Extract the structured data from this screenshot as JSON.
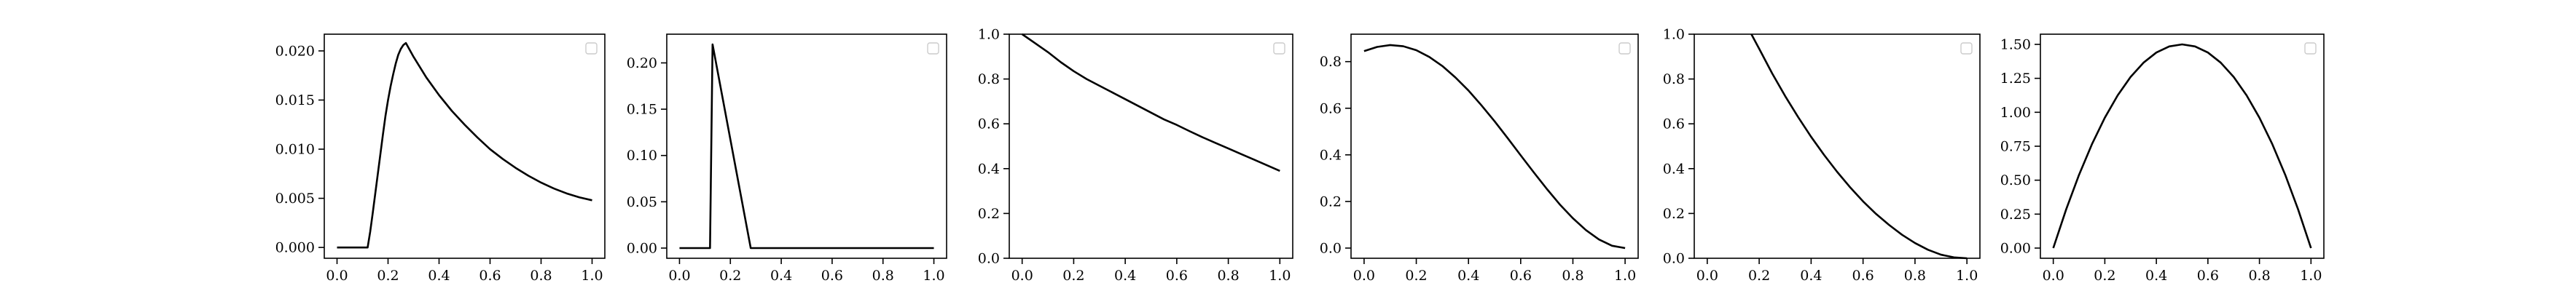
{
  "chart_data": [
    {
      "type": "line",
      "xlim": [
        -0.05,
        1.05
      ],
      "ylim": [
        -0.0011,
        0.0217
      ],
      "xticks": [
        0.0,
        0.2,
        0.4,
        0.6,
        0.8,
        1.0
      ],
      "xtick_labels": [
        "0.0",
        "0.2",
        "0.4",
        "0.6",
        "0.8",
        "1.0"
      ],
      "yticks": [
        0.0,
        0.005,
        0.01,
        0.015,
        0.02
      ],
      "ytick_labels": [
        "0.000",
        "0.005",
        "0.010",
        "0.015",
        "0.020"
      ],
      "legend": "top-right",
      "series": [
        {
          "x": [
            0.0,
            0.12,
            0.13,
            0.14,
            0.15,
            0.16,
            0.17,
            0.18,
            0.19,
            0.2,
            0.21,
            0.22,
            0.23,
            0.24,
            0.25,
            0.26,
            0.27,
            0.3,
            0.35,
            0.4,
            0.45,
            0.5,
            0.55,
            0.6,
            0.65,
            0.7,
            0.75,
            0.8,
            0.85,
            0.9,
            0.95,
            1.0
          ],
          "y": [
            0.0,
            0.0,
            0.0016,
            0.0035,
            0.0055,
            0.0075,
            0.0095,
            0.0115,
            0.0134,
            0.015,
            0.0164,
            0.0176,
            0.0187,
            0.0196,
            0.0202,
            0.0206,
            0.0208,
            0.0194,
            0.0173,
            0.0155,
            0.0139,
            0.0125,
            0.0112,
            0.01,
            0.009,
            0.0081,
            0.0073,
            0.0066,
            0.006,
            0.0055,
            0.0051,
            0.0048
          ]
        }
      ]
    },
    {
      "type": "line",
      "xlim": [
        -0.05,
        1.05
      ],
      "ylim": [
        -0.011,
        0.231
      ],
      "xticks": [
        0.0,
        0.2,
        0.4,
        0.6,
        0.8,
        1.0
      ],
      "xtick_labels": [
        "0.0",
        "0.2",
        "0.4",
        "0.6",
        "0.8",
        "1.0"
      ],
      "yticks": [
        0.0,
        0.05,
        0.1,
        0.15,
        0.2
      ],
      "ytick_labels": [
        "0.00",
        "0.05",
        "0.10",
        "0.15",
        "0.20"
      ],
      "legend": "top-right",
      "series": [
        {
          "x": [
            0.0,
            0.12,
            0.13,
            0.28,
            1.0
          ],
          "y": [
            0.0,
            0.0,
            0.22,
            0.0,
            0.0
          ]
        }
      ]
    },
    {
      "type": "line",
      "xlim": [
        -0.05,
        1.05
      ],
      "ylim": [
        0.0,
        1.0
      ],
      "xticks": [
        0.0,
        0.2,
        0.4,
        0.6,
        0.8,
        1.0
      ],
      "xtick_labels": [
        "0.0",
        "0.2",
        "0.4",
        "0.6",
        "0.8",
        "1.0"
      ],
      "yticks": [
        0.0,
        0.2,
        0.4,
        0.6,
        0.8,
        1.0
      ],
      "ytick_labels": [
        "0.0",
        "0.2",
        "0.4",
        "0.6",
        "0.8",
        "1.0"
      ],
      "legend": "top-right",
      "series": [
        {
          "x": [
            0.0,
            0.05,
            0.1,
            0.15,
            0.2,
            0.25,
            0.3,
            0.35,
            0.4,
            0.45,
            0.5,
            0.55,
            0.6,
            0.65,
            0.7,
            0.75,
            0.8,
            0.85,
            0.9,
            0.95,
            1.0
          ],
          "y": [
            1.0,
            0.96,
            0.92,
            0.875,
            0.835,
            0.8,
            0.77,
            0.74,
            0.71,
            0.68,
            0.65,
            0.62,
            0.595,
            0.567,
            0.54,
            0.515,
            0.49,
            0.465,
            0.44,
            0.415,
            0.39
          ]
        }
      ]
    },
    {
      "type": "line",
      "xlim": [
        -0.05,
        1.05
      ],
      "ylim": [
        -0.0437,
        0.9177
      ],
      "xticks": [
        0.0,
        0.2,
        0.4,
        0.6,
        0.8,
        1.0
      ],
      "xtick_labels": [
        "0.0",
        "0.2",
        "0.4",
        "0.6",
        "0.8",
        "1.0"
      ],
      "yticks": [
        0.0,
        0.2,
        0.4,
        0.6,
        0.8
      ],
      "ytick_labels": [
        "0.0",
        "0.2",
        "0.4",
        "0.6",
        "0.8"
      ],
      "legend": "top-right",
      "series": [
        {
          "x": [
            0.0,
            0.05,
            0.1,
            0.15,
            0.2,
            0.25,
            0.3,
            0.35,
            0.4,
            0.45,
            0.5,
            0.55,
            0.6,
            0.65,
            0.7,
            0.75,
            0.8,
            0.85,
            0.9,
            0.95,
            1.0
          ],
          "y": [
            0.845,
            0.863,
            0.871,
            0.866,
            0.849,
            0.82,
            0.781,
            0.732,
            0.676,
            0.612,
            0.544,
            0.472,
            0.398,
            0.325,
            0.254,
            0.187,
            0.128,
            0.077,
            0.037,
            0.01,
            0.0
          ]
        }
      ]
    },
    {
      "type": "line",
      "xlim": [
        -0.05,
        1.05
      ],
      "ylim": [
        0.0,
        1.0
      ],
      "xticks": [
        0.0,
        0.2,
        0.4,
        0.6,
        0.8,
        1.0
      ],
      "xtick_labels": [
        "0.0",
        "0.2",
        "0.4",
        "0.6",
        "0.8",
        "1.0"
      ],
      "yticks": [
        0.0,
        0.2,
        0.4,
        0.6,
        0.8,
        1.0
      ],
      "ytick_labels": [
        "0.0",
        "0.2",
        "0.4",
        "0.6",
        "0.8",
        "1.0"
      ],
      "legend": "top-right",
      "series": [
        {
          "x": [
            0.17,
            0.2,
            0.25,
            0.3,
            0.35,
            0.4,
            0.45,
            0.5,
            0.55,
            0.6,
            0.65,
            0.7,
            0.75,
            0.8,
            0.85,
            0.9,
            0.95,
            1.0
          ],
          "y": [
            1.0,
            0.935,
            0.825,
            0.724,
            0.63,
            0.542,
            0.461,
            0.386,
            0.317,
            0.254,
            0.198,
            0.149,
            0.105,
            0.068,
            0.038,
            0.016,
            0.004,
            0.0
          ]
        }
      ]
    },
    {
      "type": "line",
      "xlim": [
        -0.05,
        1.05
      ],
      "ylim": [
        -0.075,
        1.575
      ],
      "xticks": [
        0.0,
        0.2,
        0.4,
        0.6,
        0.8,
        1.0
      ],
      "xtick_labels": [
        "0.0",
        "0.2",
        "0.4",
        "0.6",
        "0.8",
        "1.0"
      ],
      "yticks": [
        0.0,
        0.25,
        0.5,
        0.75,
        1.0,
        1.25,
        1.5
      ],
      "ytick_labels": [
        "0.00",
        "0.25",
        "0.50",
        "0.75",
        "1.00",
        "1.25",
        "1.50"
      ],
      "legend": "top-right",
      "series": [
        {
          "x": [
            0.0,
            0.05,
            0.1,
            0.15,
            0.2,
            0.25,
            0.3,
            0.35,
            0.4,
            0.45,
            0.5,
            0.55,
            0.6,
            0.65,
            0.7,
            0.75,
            0.8,
            0.85,
            0.9,
            0.95,
            1.0
          ],
          "y": [
            0.0,
            0.285,
            0.54,
            0.765,
            0.96,
            1.125,
            1.26,
            1.365,
            1.44,
            1.485,
            1.5,
            1.485,
            1.44,
            1.365,
            1.26,
            1.125,
            0.96,
            0.765,
            0.54,
            0.285,
            0.0
          ]
        }
      ]
    }
  ]
}
